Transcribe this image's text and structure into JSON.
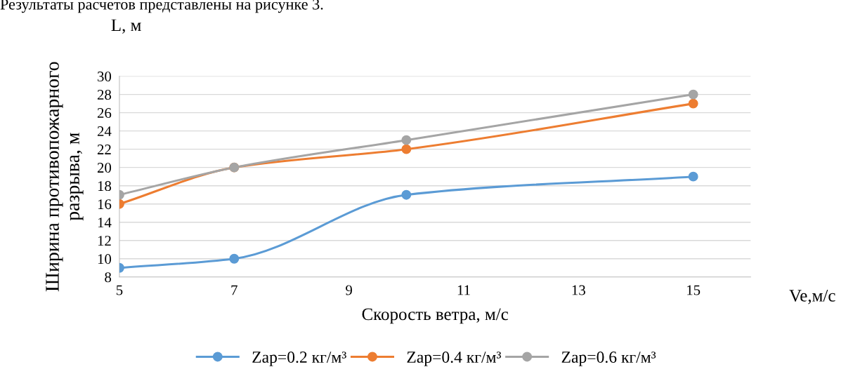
{
  "chart_data": {
    "type": "line",
    "xlabel": "Скорость ветра, м/с",
    "ylabel": "Ширина противопожарного\nразрыва, м",
    "annotations": [
      "L, м",
      "Ve,м/с",
      "Результаты расчетов представлены на рисунке 3."
    ],
    "x": [
      5,
      7,
      10,
      15
    ],
    "series": [
      {
        "name": "Zap=0.2 кг/м³",
        "color": "#5b9bd5",
        "values": [
          9,
          10,
          17,
          19
        ]
      },
      {
        "name": "Zap=0.4 кг/м³",
        "color": "#ed7d31",
        "values": [
          16,
          20,
          22,
          27
        ]
      },
      {
        "name": "Zap=0.6 кг/м³",
        "color": "#a5a5a5",
        "values": [
          17,
          20,
          23,
          28
        ]
      }
    ],
    "xlim": [
      5,
      16
    ],
    "xticks": [
      5,
      7,
      9,
      11,
      13,
      15
    ],
    "ylim": [
      8,
      30
    ],
    "yticks": [
      8,
      10,
      12,
      14,
      16,
      18,
      20,
      22,
      24,
      26,
      28,
      30
    ],
    "grid": "y",
    "legend": "bottom",
    "marker": "circle",
    "line_style": "solid"
  }
}
